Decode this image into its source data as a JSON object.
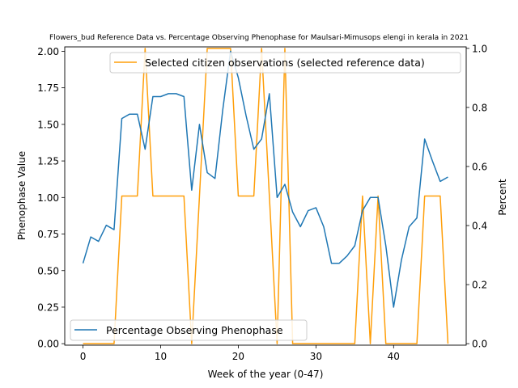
{
  "chart_data": {
    "type": "line",
    "title": "Flowers_bud Reference Data vs. Percentage Observing Phenophase for Maulsari-Mimusops elengi in kerala in 2021",
    "xlabel": "Week of the year (0-47)",
    "ylabel_left": "Phenophase Value",
    "ylabel_right": "Percent",
    "xlim": [
      -2.35,
      49.35
    ],
    "ylim_left": [
      -0.01,
      2.03
    ],
    "ylim_right": [
      -0.005,
      1.005
    ],
    "xticks": [
      0,
      10,
      20,
      30,
      40
    ],
    "yticks_left": [
      0.0,
      0.25,
      0.5,
      0.75,
      1.0,
      1.25,
      1.5,
      1.75,
      2.0
    ],
    "yticks_right": [
      0.0,
      0.2,
      0.4,
      0.6,
      0.8,
      1.0
    ],
    "ytick_labels_left": [
      "0.00",
      "0.25",
      "0.50",
      "0.75",
      "1.00",
      "1.25",
      "1.50",
      "1.75",
      "2.00"
    ],
    "ytick_labels_right": [
      "0.0",
      "0.2",
      "0.4",
      "0.6",
      "0.8",
      "1.0"
    ],
    "series": [
      {
        "name": "Percentage Observing Phenophase",
        "axis": "left",
        "color": "#1f77b4",
        "legend": "lower-left",
        "x": [
          0,
          1,
          2,
          3,
          4,
          5,
          6,
          7,
          8,
          9,
          10,
          11,
          12,
          13,
          14,
          15,
          16,
          17,
          18,
          19,
          20,
          21,
          22,
          23,
          24,
          25,
          26,
          27,
          28,
          29,
          30,
          31,
          32,
          33,
          34,
          35,
          36,
          37,
          38,
          39,
          40,
          41,
          42,
          43,
          44,
          45,
          46,
          47
        ],
        "y": [
          0.55,
          0.73,
          0.7,
          0.81,
          0.78,
          1.54,
          1.57,
          1.57,
          1.33,
          1.69,
          1.69,
          1.71,
          1.71,
          1.69,
          1.05,
          1.5,
          1.17,
          1.13,
          1.6,
          2.0,
          1.82,
          1.56,
          1.33,
          1.4,
          1.71,
          1.0,
          1.09,
          0.9,
          0.8,
          0.91,
          0.93,
          0.8,
          0.55,
          0.55,
          0.6,
          0.67,
          0.91,
          1.0,
          1.0,
          0.67,
          0.25,
          0.57,
          0.8,
          0.86,
          1.4,
          1.25,
          1.11,
          1.14
        ]
      },
      {
        "name": "Selected citizen observations (selected reference data)",
        "axis": "right",
        "color": "#ff9f0a",
        "legend": "top-right",
        "x": [
          0,
          1,
          2,
          3,
          4,
          5,
          6,
          7,
          8,
          9,
          10,
          11,
          12,
          13,
          14,
          15,
          16,
          17,
          18,
          19,
          20,
          21,
          22,
          23,
          24,
          25,
          26,
          27,
          28,
          29,
          30,
          31,
          32,
          33,
          34,
          35,
          36,
          37,
          38,
          39,
          40,
          41,
          42,
          43,
          44,
          45,
          46,
          47
        ],
        "y": [
          0,
          0,
          0,
          0,
          0,
          0.5,
          0.5,
          0.5,
          1,
          0.5,
          0.5,
          0.5,
          0.5,
          0.5,
          0,
          0.5,
          1,
          1,
          1,
          1,
          0.5,
          0.5,
          0.5,
          1,
          0.5,
          0,
          1,
          0,
          0,
          0,
          0,
          0,
          0,
          0,
          0,
          0,
          0.5,
          0,
          0.5,
          0,
          0,
          0,
          0,
          0,
          0.5,
          0.5,
          0.5,
          0
        ]
      }
    ]
  }
}
